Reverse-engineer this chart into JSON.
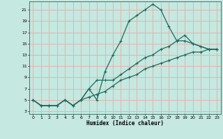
{
  "title": "",
  "xlabel": "Humidex (Indice chaleur)",
  "bg_color": "#c5e8e0",
  "grid_color": "#e8b0b0",
  "line_color": "#1a6b5a",
  "xlim": [
    -0.5,
    23.5
  ],
  "ylim": [
    2.5,
    22.5
  ],
  "xticks": [
    0,
    1,
    2,
    3,
    4,
    5,
    6,
    7,
    8,
    9,
    10,
    11,
    12,
    13,
    14,
    15,
    16,
    17,
    18,
    19,
    20,
    21,
    22,
    23
  ],
  "yticks": [
    3,
    5,
    7,
    9,
    11,
    13,
    15,
    17,
    19,
    21
  ],
  "line1_x": [
    0,
    1,
    2,
    3,
    4,
    5,
    6,
    7,
    8,
    9,
    10,
    11,
    12,
    13,
    14,
    15,
    16,
    17,
    18,
    19,
    20,
    21,
    22,
    23
  ],
  "line1_y": [
    5,
    4,
    4,
    4,
    5,
    4,
    5,
    7,
    5,
    10,
    13,
    15.5,
    19,
    20,
    21,
    22,
    21,
    18,
    15.5,
    16.5,
    15,
    14.5,
    14,
    14
  ],
  "line2_x": [
    0,
    1,
    2,
    3,
    4,
    5,
    6,
    7,
    8,
    9,
    10,
    11,
    12,
    13,
    14,
    15,
    16,
    17,
    18,
    19,
    20,
    21,
    22,
    23
  ],
  "line2_y": [
    5,
    4,
    4,
    4,
    5,
    4,
    5,
    7,
    8.5,
    8.5,
    8.5,
    9.5,
    10.5,
    11.5,
    12.5,
    13,
    14,
    14.5,
    15.5,
    15.5,
    15,
    14.5,
    14,
    14
  ],
  "line3_x": [
    0,
    1,
    2,
    3,
    4,
    5,
    6,
    7,
    8,
    9,
    10,
    11,
    12,
    13,
    14,
    15,
    16,
    17,
    18,
    19,
    20,
    21,
    22,
    23
  ],
  "line3_y": [
    5,
    4,
    4,
    4,
    5,
    4,
    5,
    5.5,
    6,
    6.5,
    7.5,
    8.5,
    9,
    9.5,
    10.5,
    11,
    11.5,
    12,
    12.5,
    13,
    13.5,
    13.5,
    14,
    14
  ]
}
